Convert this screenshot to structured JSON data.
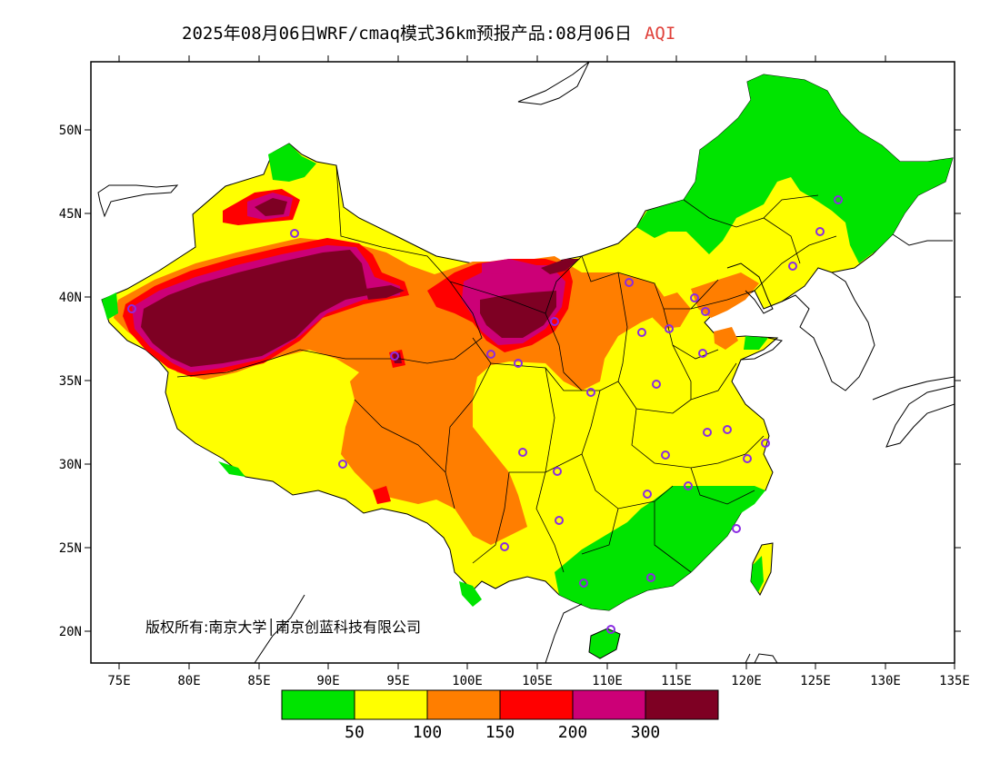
{
  "header": {
    "title": "2025年08月06日WRF/cmaq模式36km预报产品:08月06日",
    "variable": "AQI"
  },
  "map": {
    "lat_ticks": [
      "50N",
      "45N",
      "40N",
      "35N",
      "30N",
      "25N",
      "20N"
    ],
    "lon_ticks": [
      "75E",
      "80E",
      "85E",
      "90E",
      "95E",
      "100E",
      "105E",
      "110E",
      "115E",
      "120E",
      "125E",
      "130E",
      "135E"
    ],
    "copyright": "版权所有:南京大学│南京创蓝科技有限公司"
  },
  "legend": {
    "colors": [
      "#00e400",
      "#ffff00",
      "#ff7e00",
      "#ff0000",
      "#cc0077",
      "#7e0023"
    ],
    "labels": [
      "50",
      "100",
      "150",
      "200",
      "300"
    ]
  },
  "colors": {
    "good": "#00e400",
    "moderate": "#ffff00",
    "unhealthy_sensitive": "#ff7e00",
    "unhealthy": "#ff0000",
    "very_unhealthy": "#cc0077",
    "hazardous": "#7e0023",
    "station_marker": "#8a2be2"
  }
}
